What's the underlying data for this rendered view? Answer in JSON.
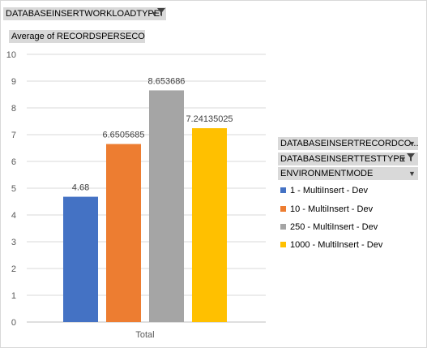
{
  "filters": {
    "report_filter": "DATABASEINSERTWORKLOADTYPE",
    "value_field": "Average of RECORDSPERSECOND",
    "legend_fields": [
      "DATABASEINSERTRECORDCO...",
      "DATABASEINSERTTESTTYPE",
      "ENVIRONMENTMODE"
    ]
  },
  "icons": {
    "dropdown": "dropdown-arrow-icon",
    "filter": "filter-funnel-icon"
  },
  "chart_data": {
    "type": "bar",
    "categories": [
      "Total"
    ],
    "series": [
      {
        "name": "1 - MultiInsert - Dev",
        "values": [
          4.68
        ],
        "label": "4.68",
        "color": "#4472c4"
      },
      {
        "name": "10 - MultiInsert - Dev",
        "values": [
          6.6505685
        ],
        "label": "6.6505685",
        "color": "#ed7d31"
      },
      {
        "name": "250 - MultiInsert - Dev",
        "values": [
          8.653686
        ],
        "label": "8.653686",
        "color": "#a5a5a5"
      },
      {
        "name": "1000 - MultiInsert - Dev",
        "values": [
          7.24135025
        ],
        "label": "7.24135025",
        "color": "#ffc000"
      }
    ],
    "ylim": [
      0,
      10
    ],
    "yticks": [
      "0",
      "1",
      "2",
      "3",
      "4",
      "5",
      "6",
      "7",
      "8",
      "9",
      "10"
    ],
    "grid": true,
    "legend": "right"
  }
}
